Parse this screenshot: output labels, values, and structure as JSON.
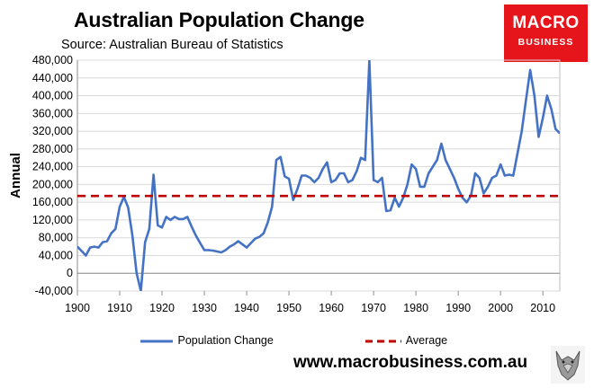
{
  "header": {
    "title": "Australian Population Change",
    "subtitle": "Source: Australian Bureau of Statistics"
  },
  "logo": {
    "line1": "MACRO",
    "line2": "BUSINESS",
    "color": "#e6151c"
  },
  "footer": {
    "website": "www.macrobusiness.com.au"
  },
  "colors": {
    "series": "#4472c4",
    "average": "#c00000",
    "grid": "#d9d9d9"
  },
  "chart_data": {
    "type": "line",
    "ylabel": "Annual",
    "xlim": [
      1900,
      2014
    ],
    "ylim": [
      -40000,
      480000
    ],
    "x_ticks": [
      1900,
      1910,
      1920,
      1930,
      1940,
      1950,
      1960,
      1970,
      1980,
      1990,
      2000,
      2010
    ],
    "y_ticks": [
      -40000,
      0,
      40000,
      80000,
      120000,
      160000,
      200000,
      240000,
      280000,
      320000,
      360000,
      400000,
      440000,
      480000
    ],
    "y_tick_labels": [
      "-40,000",
      "0",
      "40,000",
      "80,000",
      "120,000",
      "160,000",
      "200,000",
      "240,000",
      "280,000",
      "320,000",
      "360,000",
      "400,000",
      "440,000",
      "480,000"
    ],
    "legend_position": "bottom",
    "grid": true,
    "series": [
      {
        "name": "Population Change",
        "style": "solid",
        "x": [
          1900,
          1901,
          1902,
          1903,
          1904,
          1905,
          1906,
          1907,
          1908,
          1909,
          1910,
          1911,
          1912,
          1913,
          1914,
          1915,
          1916,
          1917,
          1918,
          1919,
          1920,
          1921,
          1922,
          1923,
          1924,
          1925,
          1926,
          1927,
          1928,
          1929,
          1930,
          1931,
          1932,
          1933,
          1934,
          1935,
          1936,
          1937,
          1938,
          1939,
          1940,
          1941,
          1942,
          1943,
          1944,
          1945,
          1946,
          1947,
          1948,
          1949,
          1950,
          1951,
          1952,
          1953,
          1954,
          1955,
          1956,
          1957,
          1958,
          1959,
          1960,
          1961,
          1962,
          1963,
          1964,
          1965,
          1966,
          1967,
          1968,
          1969,
          1970,
          1971,
          1972,
          1973,
          1974,
          1975,
          1976,
          1977,
          1978,
          1979,
          1980,
          1981,
          1982,
          1983,
          1984,
          1985,
          1986,
          1987,
          1988,
          1989,
          1990,
          1991,
          1992,
          1993,
          1994,
          1995,
          1996,
          1997,
          1998,
          1999,
          2000,
          2001,
          2002,
          2003,
          2004,
          2005,
          2006,
          2007,
          2008,
          2009,
          2010,
          2011,
          2012,
          2013,
          2014
        ],
        "values": [
          60000,
          50000,
          40000,
          58000,
          60000,
          58000,
          70000,
          72000,
          90000,
          100000,
          150000,
          172000,
          148000,
          85000,
          0,
          -40000,
          70000,
          100000,
          222000,
          108000,
          103000,
          127000,
          120000,
          127000,
          122000,
          122000,
          127000,
          105000,
          85000,
          68000,
          52000,
          52000,
          51000,
          49000,
          47000,
          52000,
          60000,
          65000,
          72000,
          65000,
          58000,
          68000,
          78000,
          82000,
          90000,
          115000,
          150000,
          255000,
          262000,
          218000,
          213000,
          165000,
          190000,
          220000,
          220000,
          215000,
          205000,
          215000,
          235000,
          250000,
          205000,
          210000,
          225000,
          225000,
          205000,
          210000,
          230000,
          260000,
          255000,
          480000,
          210000,
          205000,
          215000,
          140000,
          142000,
          170000,
          150000,
          170000,
          200000,
          245000,
          235000,
          195000,
          195000,
          225000,
          240000,
          255000,
          292000,
          255000,
          235000,
          215000,
          190000,
          170000,
          160000,
          175000,
          225000,
          215000,
          180000,
          195000,
          215000,
          220000,
          245000,
          220000,
          222000,
          220000,
          270000,
          320000,
          390000,
          458000,
          400000,
          307000,
          350000,
          400000,
          370000,
          325000,
          315000
        ]
      },
      {
        "name": "Average",
        "style": "dashed",
        "x": [
          1900,
          2014
        ],
        "values": [
          174000,
          174000
        ]
      }
    ]
  }
}
